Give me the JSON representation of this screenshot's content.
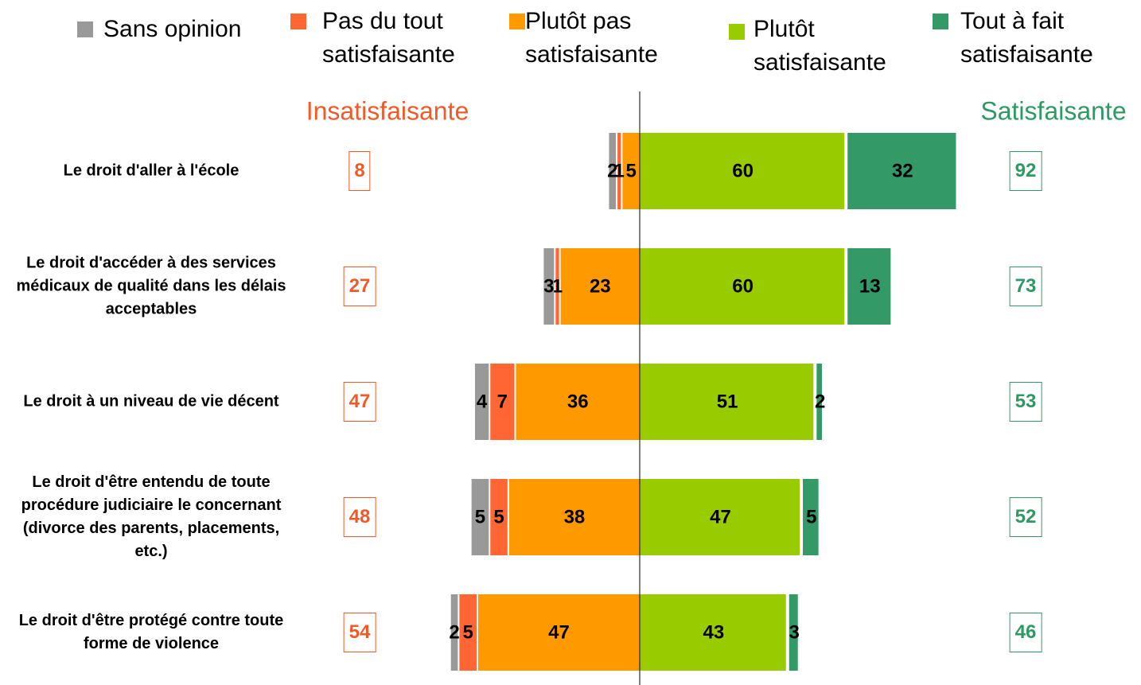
{
  "chart_data": {
    "type": "diverging-bar",
    "categories": [
      "Le droit d'aller à l'école",
      "Le droit d'accéder à des services médicaux de qualité dans les délais acceptables",
      "Le droit à un niveau de vie décent",
      "Le droit d'être entendu de toute procédure judiciaire le concernant (divorce des parents, placements, etc.)",
      "Le droit d'être protégé contre toute forme de violence"
    ],
    "series": [
      {
        "name": "Sans opinion",
        "color": "#999999",
        "side": "left",
        "values": [
          2,
          3,
          4,
          5,
          2
        ]
      },
      {
        "name": "Pas du tout satisfaisante",
        "color": "#ff6633",
        "side": "left",
        "values": [
          1,
          1,
          7,
          5,
          5
        ]
      },
      {
        "name": "Plutôt pas satisfaisante",
        "color": "#ff9900",
        "side": "left",
        "values": [
          5,
          23,
          36,
          38,
          47
        ]
      },
      {
        "name": "Plutôt satisfaisante",
        "color": "#99cc00",
        "side": "right",
        "values": [
          60,
          60,
          51,
          47,
          43
        ]
      },
      {
        "name": "Tout à fait satisfaisante",
        "color": "#339966",
        "side": "right",
        "values": [
          32,
          13,
          2,
          5,
          3
        ]
      }
    ],
    "left_total": {
      "label": "Insatisfaisante",
      "color": "#f05a28",
      "values": [
        8,
        27,
        47,
        48,
        54
      ]
    },
    "right_total": {
      "label": "Satisfaisante",
      "color": "#2e9a63",
      "values": [
        92,
        73,
        53,
        52,
        46
      ]
    }
  }
}
